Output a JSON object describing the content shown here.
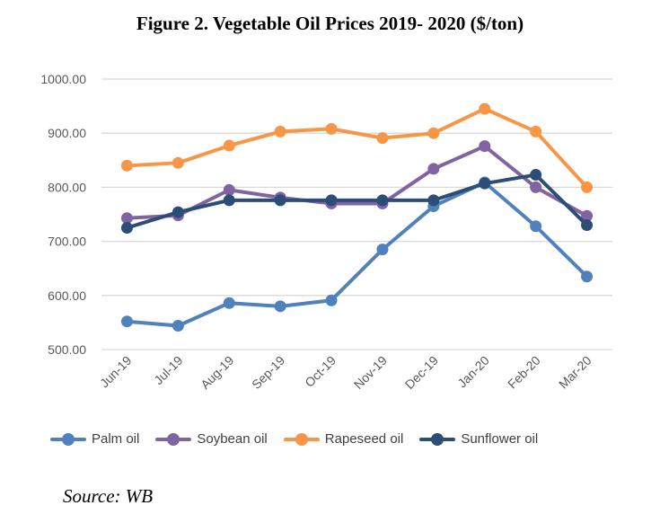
{
  "chart_data": {
    "type": "line",
    "title": "Figure 2. Vegetable Oil Prices 2019- 2020 ($/ton)",
    "xlabel": "",
    "ylabel": "",
    "ylim": [
      500,
      1000
    ],
    "yticks": [
      1000,
      900,
      800,
      700,
      600,
      500
    ],
    "ytick_labels": [
      "1000.00",
      "900.00",
      "800.00",
      "700.00",
      "600.00",
      "500.00"
    ],
    "grid": true,
    "legend_position": "bottom",
    "categories": [
      "Jun-19",
      "Jul-19",
      "Aug-19",
      "Sep-19",
      "Oct-19",
      "Nov-19",
      "Dec-19",
      "Jan-20",
      "Feb-20",
      "Mar-20"
    ],
    "series": [
      {
        "name": "Palm oil",
        "color": "#4f81bd",
        "values": [
          552,
          544,
          586,
          580,
          591,
          685,
          765,
          809,
          728,
          635
        ]
      },
      {
        "name": "Soybean oil",
        "color": "#8064a2",
        "values": [
          743,
          748,
          795,
          781,
          770,
          770,
          834,
          876,
          800,
          747
        ]
      },
      {
        "name": "Rapeseed oil",
        "color": "#f79646",
        "values": [
          840,
          845,
          877,
          903,
          908,
          891,
          900,
          945,
          903,
          800
        ]
      },
      {
        "name": "Sunflower oil",
        "color": "#2c4d75",
        "values": [
          725,
          754,
          776,
          776,
          776,
          776,
          776,
          807,
          823,
          730
        ]
      }
    ]
  },
  "source": "Source: WB"
}
